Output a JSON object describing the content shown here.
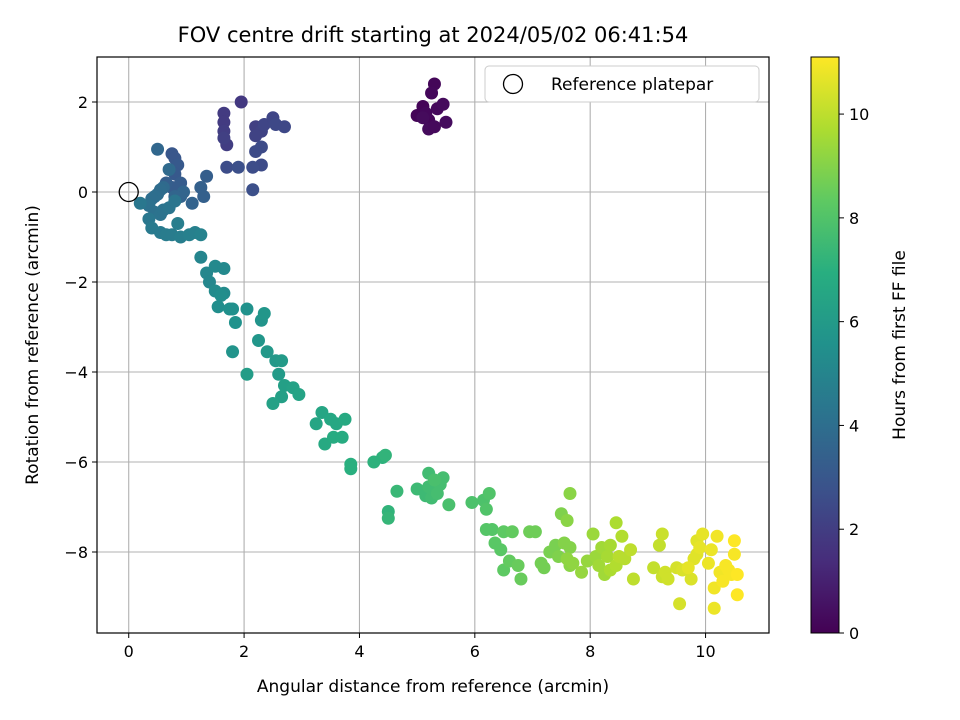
{
  "chart_data": {
    "type": "scatter",
    "title": "FOV centre drift starting at 2024/05/02 06:41:54",
    "xlabel": "Angular distance from reference (arcmin)",
    "ylabel": "Rotation from reference (arcmin)",
    "xlim": [
      -0.55,
      11.1
    ],
    "ylim": [
      -9.8,
      3.0
    ],
    "xticks": [
      0,
      2,
      4,
      6,
      8,
      10
    ],
    "yticks": [
      -8,
      -6,
      -4,
      -2,
      0,
      2
    ],
    "grid": true,
    "legend": {
      "position": "top-right",
      "entries": [
        "Reference platepar"
      ]
    },
    "reference_point": {
      "x": 0,
      "y": 0
    },
    "colorbar": {
      "label": "Hours from first FF file",
      "colormap": "viridis",
      "range": [
        0,
        11.1
      ],
      "ticks": [
        0,
        2,
        4,
        6,
        8,
        10
      ]
    },
    "series": [
      {
        "color_by": "hours",
        "points": [
          [
            5.0,
            1.7,
            0.1
          ],
          [
            5.1,
            1.9,
            0.1
          ],
          [
            5.2,
            1.6,
            0.15
          ],
          [
            5.3,
            2.4,
            0.15
          ],
          [
            5.25,
            2.2,
            0.2
          ],
          [
            5.35,
            1.85,
            0.25
          ],
          [
            5.45,
            1.95,
            0.3
          ],
          [
            5.2,
            1.4,
            0.3
          ],
          [
            5.5,
            1.55,
            0.35
          ],
          [
            5.15,
            1.75,
            0.2
          ],
          [
            5.3,
            1.45,
            0.25
          ],
          [
            5.1,
            1.65,
            0.3
          ],
          [
            1.95,
            2.0,
            1.8
          ],
          [
            1.65,
            1.75,
            1.9
          ],
          [
            1.65,
            1.55,
            1.9
          ],
          [
            1.65,
            1.35,
            2.0
          ],
          [
            1.7,
            1.05,
            2.0
          ],
          [
            1.65,
            1.2,
            2.1
          ],
          [
            2.2,
            1.45,
            2.1
          ],
          [
            2.3,
            1.35,
            2.2
          ],
          [
            2.2,
            1.25,
            2.2
          ],
          [
            2.35,
            1.5,
            2.3
          ],
          [
            2.5,
            1.65,
            2.3
          ],
          [
            2.55,
            1.5,
            2.4
          ],
          [
            2.7,
            1.45,
            2.4
          ],
          [
            2.3,
            1.0,
            2.5
          ],
          [
            2.2,
            0.9,
            2.5
          ],
          [
            2.3,
            0.6,
            2.5
          ],
          [
            2.15,
            0.55,
            2.6
          ],
          [
            1.7,
            0.55,
            2.6
          ],
          [
            1.9,
            0.55,
            2.7
          ],
          [
            2.15,
            0.05,
            2.7
          ],
          [
            0.75,
            0.85,
            3.0
          ],
          [
            0.8,
            0.75,
            3.0
          ],
          [
            0.85,
            0.6,
            3.1
          ],
          [
            0.8,
            0.4,
            3.1
          ],
          [
            0.9,
            0.2,
            3.2
          ],
          [
            0.75,
            0.1,
            3.2
          ],
          [
            0.65,
            0.2,
            3.3
          ],
          [
            1.35,
            0.35,
            3.3
          ],
          [
            1.25,
            0.1,
            3.4
          ],
          [
            1.3,
            -0.1,
            3.4
          ],
          [
            1.1,
            -0.25,
            3.5
          ],
          [
            0.9,
            -0.1,
            3.5
          ],
          [
            0.95,
            0.0,
            3.6
          ],
          [
            0.8,
            -0.1,
            3.6
          ],
          [
            0.5,
            0.95,
            3.7
          ],
          [
            0.7,
            0.5,
            3.8
          ],
          [
            0.6,
            0.1,
            3.8
          ],
          [
            0.55,
            0.05,
            3.9
          ],
          [
            0.5,
            -0.05,
            3.9
          ],
          [
            0.45,
            -0.1,
            4.0
          ],
          [
            0.4,
            -0.15,
            4.0
          ],
          [
            0.35,
            -0.3,
            4.1
          ],
          [
            0.45,
            -0.45,
            4.1
          ],
          [
            0.55,
            -0.5,
            4.2
          ],
          [
            0.6,
            -0.4,
            4.2
          ],
          [
            0.7,
            -0.35,
            4.3
          ],
          [
            0.8,
            -0.2,
            4.3
          ],
          [
            0.2,
            -0.25,
            4.4
          ],
          [
            0.35,
            -0.6,
            4.4
          ],
          [
            0.4,
            -0.8,
            4.5
          ],
          [
            0.55,
            -0.9,
            4.5
          ],
          [
            0.65,
            -0.95,
            4.6
          ],
          [
            0.75,
            -0.95,
            4.6
          ],
          [
            0.85,
            -0.7,
            4.7
          ],
          [
            0.9,
            -1.0,
            4.7
          ],
          [
            1.05,
            -0.95,
            4.8
          ],
          [
            1.15,
            -0.9,
            4.8
          ],
          [
            1.25,
            -0.95,
            4.9
          ],
          [
            1.25,
            -1.45,
            5.0
          ],
          [
            1.35,
            -1.8,
            5.1
          ],
          [
            1.4,
            -2.0,
            5.1
          ],
          [
            1.5,
            -1.65,
            5.2
          ],
          [
            1.65,
            -1.7,
            5.2
          ],
          [
            1.5,
            -2.2,
            5.3
          ],
          [
            1.65,
            -2.25,
            5.3
          ],
          [
            1.6,
            -2.3,
            5.4
          ],
          [
            1.55,
            -2.55,
            5.4
          ],
          [
            1.75,
            -2.6,
            5.5
          ],
          [
            1.8,
            -2.6,
            5.5
          ],
          [
            1.85,
            -2.9,
            5.6
          ],
          [
            2.05,
            -2.6,
            5.6
          ],
          [
            1.8,
            -3.55,
            5.7
          ],
          [
            2.3,
            -2.85,
            5.7
          ],
          [
            2.35,
            -2.7,
            5.8
          ],
          [
            2.25,
            -3.3,
            5.8
          ],
          [
            2.4,
            -3.55,
            5.9
          ],
          [
            2.55,
            -3.75,
            5.9
          ],
          [
            2.65,
            -3.75,
            6.0
          ],
          [
            2.6,
            -4.05,
            6.0
          ],
          [
            2.05,
            -4.05,
            6.1
          ],
          [
            2.7,
            -4.3,
            6.2
          ],
          [
            2.65,
            -4.55,
            6.2
          ],
          [
            2.5,
            -4.7,
            6.3
          ],
          [
            2.85,
            -4.35,
            6.3
          ],
          [
            2.95,
            -4.5,
            6.4
          ],
          [
            3.25,
            -5.15,
            6.5
          ],
          [
            3.35,
            -4.9,
            6.5
          ],
          [
            3.5,
            -5.05,
            6.6
          ],
          [
            3.6,
            -5.15,
            6.6
          ],
          [
            3.75,
            -5.05,
            6.7
          ],
          [
            3.4,
            -5.6,
            6.7
          ],
          [
            3.55,
            -5.45,
            6.8
          ],
          [
            3.7,
            -5.45,
            6.8
          ],
          [
            3.85,
            -6.05,
            7.0
          ],
          [
            3.85,
            -6.15,
            7.0
          ],
          [
            4.25,
            -6.0,
            7.1
          ],
          [
            4.4,
            -5.9,
            7.1
          ],
          [
            4.45,
            -5.85,
            7.2
          ],
          [
            4.5,
            -7.1,
            7.2
          ],
          [
            4.5,
            -7.25,
            7.3
          ],
          [
            4.65,
            -6.65,
            7.4
          ],
          [
            5.0,
            -6.6,
            7.5
          ],
          [
            5.15,
            -6.75,
            7.5
          ],
          [
            5.2,
            -6.55,
            7.6
          ],
          [
            5.25,
            -6.8,
            7.6
          ],
          [
            5.3,
            -6.65,
            7.6
          ],
          [
            5.35,
            -6.7,
            7.7
          ],
          [
            5.4,
            -6.5,
            7.7
          ],
          [
            5.45,
            -6.35,
            7.7
          ],
          [
            5.2,
            -6.25,
            7.6
          ],
          [
            5.3,
            -6.4,
            7.8
          ],
          [
            5.55,
            -6.95,
            7.8
          ],
          [
            5.95,
            -6.9,
            7.9
          ],
          [
            6.15,
            -6.85,
            7.9
          ],
          [
            6.2,
            -7.05,
            8.0
          ],
          [
            6.25,
            -6.7,
            8.0
          ],
          [
            6.3,
            -7.5,
            8.1
          ],
          [
            6.2,
            -7.5,
            8.1
          ],
          [
            6.35,
            -7.8,
            8.2
          ],
          [
            6.45,
            -7.95,
            8.2
          ],
          [
            6.5,
            -7.55,
            8.3
          ],
          [
            6.5,
            -8.4,
            8.3
          ],
          [
            6.65,
            -7.55,
            8.4
          ],
          [
            6.6,
            -8.2,
            8.4
          ],
          [
            6.75,
            -8.3,
            8.5
          ],
          [
            6.8,
            -8.6,
            8.5
          ],
          [
            6.95,
            -7.55,
            8.6
          ],
          [
            7.05,
            -7.55,
            8.6
          ],
          [
            7.15,
            -8.25,
            8.7
          ],
          [
            7.2,
            -8.35,
            8.7
          ],
          [
            7.3,
            -8.0,
            8.8
          ],
          [
            7.4,
            -7.85,
            8.8
          ],
          [
            7.45,
            -8.1,
            8.9
          ],
          [
            7.5,
            -7.15,
            8.9
          ],
          [
            7.55,
            -7.8,
            9.0
          ],
          [
            7.65,
            -7.9,
            9.0
          ],
          [
            7.65,
            -8.3,
            9.1
          ],
          [
            7.6,
            -7.3,
            9.1
          ],
          [
            7.65,
            -6.7,
            9.1
          ],
          [
            7.6,
            -8.15,
            9.2
          ],
          [
            7.7,
            -8.25,
            9.2
          ],
          [
            7.85,
            -8.45,
            9.3
          ],
          [
            7.95,
            -8.2,
            9.3
          ],
          [
            8.05,
            -7.6,
            9.4
          ],
          [
            8.1,
            -8.1,
            9.4
          ],
          [
            8.15,
            -8.3,
            9.5
          ],
          [
            8.2,
            -7.9,
            9.5
          ],
          [
            8.25,
            -8.5,
            9.5
          ],
          [
            8.3,
            -8.1,
            9.6
          ],
          [
            8.35,
            -7.85,
            9.6
          ],
          [
            8.35,
            -8.4,
            9.7
          ],
          [
            8.45,
            -7.35,
            9.7
          ],
          [
            8.45,
            -8.3,
            9.8
          ],
          [
            8.55,
            -7.65,
            9.8
          ],
          [
            8.5,
            -8.1,
            9.9
          ],
          [
            8.6,
            -8.15,
            9.9
          ],
          [
            8.7,
            -7.95,
            10.0
          ],
          [
            8.75,
            -8.6,
            10.0
          ],
          [
            9.1,
            -8.35,
            10.1
          ],
          [
            9.2,
            -7.85,
            10.1
          ],
          [
            9.25,
            -8.55,
            10.2
          ],
          [
            9.25,
            -7.6,
            10.2
          ],
          [
            9.3,
            -8.45,
            10.3
          ],
          [
            9.35,
            -8.6,
            10.3
          ],
          [
            9.5,
            -8.35,
            10.4
          ],
          [
            9.55,
            -9.15,
            10.4
          ],
          [
            9.6,
            -8.4,
            10.5
          ],
          [
            9.75,
            -8.6,
            10.5
          ],
          [
            9.8,
            -8.15,
            10.6
          ],
          [
            9.85,
            -8.05,
            10.6
          ],
          [
            9.85,
            -7.75,
            10.6
          ],
          [
            9.9,
            -7.9,
            10.7
          ],
          [
            9.95,
            -7.6,
            10.7
          ],
          [
            9.7,
            -8.35,
            10.7
          ],
          [
            10.05,
            -8.25,
            10.8
          ],
          [
            10.1,
            -7.95,
            10.8
          ],
          [
            10.15,
            -9.25,
            10.8
          ],
          [
            10.15,
            -8.8,
            10.9
          ],
          [
            10.2,
            -7.65,
            10.9
          ],
          [
            10.25,
            -8.45,
            10.9
          ],
          [
            10.3,
            -8.65,
            11.0
          ],
          [
            10.35,
            -8.3,
            11.0
          ],
          [
            10.4,
            -8.4,
            11.0
          ],
          [
            10.45,
            -8.5,
            11.0
          ],
          [
            10.5,
            -8.05,
            11.0
          ],
          [
            10.5,
            -7.75,
            11.1
          ],
          [
            10.55,
            -8.5,
            11.1
          ],
          [
            10.55,
            -8.95,
            11.1
          ]
        ]
      }
    ]
  }
}
